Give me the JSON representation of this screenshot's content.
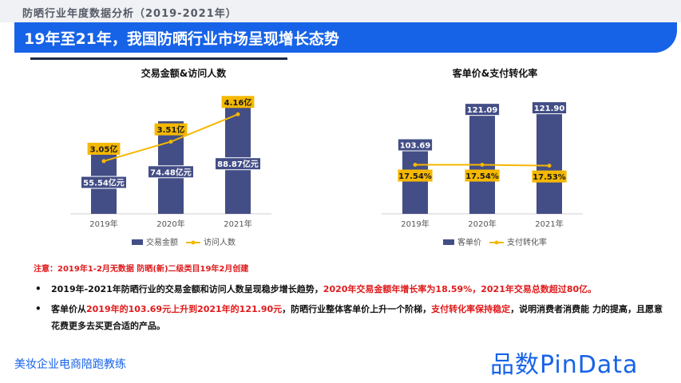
{
  "header": {
    "top_title": "防晒行业年度数据分析（2019-2021年）",
    "banner_title": "19年至21年，我国防晒行业市场呈现增长态势"
  },
  "colors": {
    "bar": "#434e86",
    "line": "#f5b800",
    "label_bg": "#f5b800",
    "accent_blue": "#1763e8",
    "highlight_red": "#e0191a"
  },
  "chart_data": [
    {
      "type": "bar",
      "title": "交易金额&访问人数",
      "categories": [
        "2019年",
        "2020年",
        "2021年"
      ],
      "series": [
        {
          "name": "交易金额",
          "kind": "bar",
          "values": [
            55.54,
            74.48,
            88.87
          ],
          "labels": [
            "55.54亿元",
            "74.48亿元",
            "88.87亿元"
          ]
        },
        {
          "name": "访问人数",
          "kind": "line",
          "values": [
            3.05,
            3.51,
            4.16
          ],
          "labels": [
            "3.05亿",
            "3.51亿",
            "4.16亿"
          ]
        }
      ],
      "legend": "bottom",
      "grid": false
    },
    {
      "type": "bar",
      "title": "客单价&支付转化率",
      "categories": [
        "2019年",
        "2020年",
        "2021年"
      ],
      "series": [
        {
          "name": "客单价",
          "kind": "bar",
          "values": [
            103.69,
            121.09,
            121.9
          ],
          "labels": [
            "103.69",
            "121.09",
            "121.90"
          ]
        },
        {
          "name": "支付转化率",
          "kind": "line",
          "values": [
            17.54,
            17.54,
            17.53
          ],
          "labels": [
            "17.54%",
            "17.54%",
            "17.53%"
          ]
        }
      ],
      "legend": "bottom",
      "grid": false
    }
  ],
  "note": "注意：2019年1-2月无数据   防晒(新)二级类目19年2月创建",
  "bullets": [
    {
      "a": "2019年-2021年防晒行业的交易金额和访问人数呈现稳步增长趋势，",
      "b": "2020年交易金额年增长率为18.59%，2021年交易总数超过80亿。"
    },
    {
      "a": "客单价从",
      "b": "2019年的103.69元上升到2021年的121.90元",
      "c": "，防晒行业整体客单价上升一个阶梯，",
      "d": "支付转化率保持稳定",
      "e": "，说明消费者消费能 力的提高，且愿意花费更多去买更合适的产品。"
    }
  ],
  "footer": {
    "left_text": "美妆企业电商陪跑教练",
    "brand": "品数PinData"
  }
}
